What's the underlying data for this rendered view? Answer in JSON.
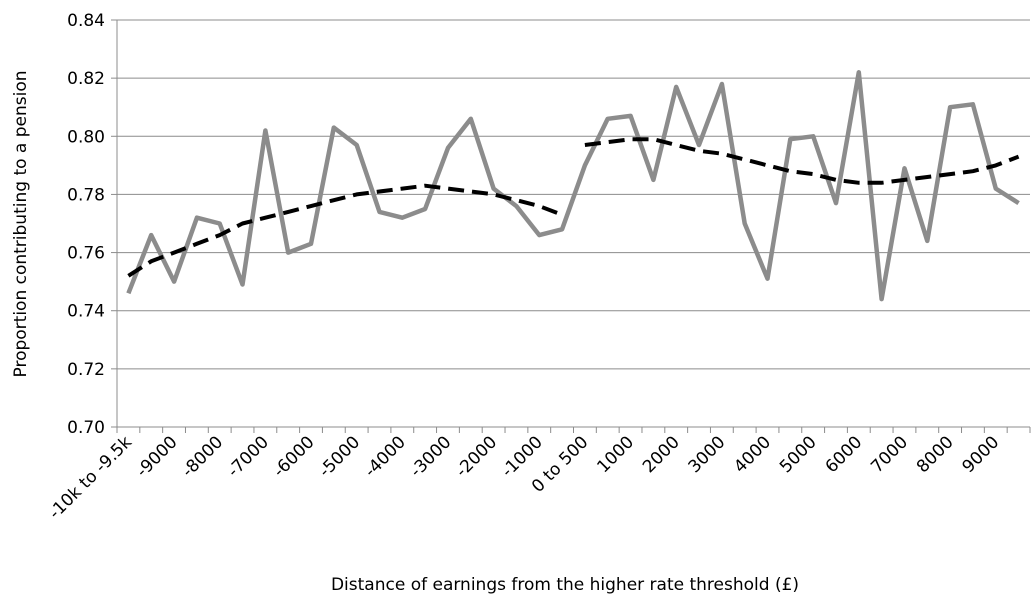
{
  "chart_data": {
    "type": "line",
    "y_label": "Proportion contributing to a pension",
    "x_label": "Distance of earnings from the higher rate threshold (£)",
    "categories": [
      "-10k to -9.5k",
      null,
      "-9000",
      null,
      "-8000",
      null,
      "-7000",
      null,
      "-6000",
      null,
      "-5000",
      null,
      "-4000",
      null,
      "-3000",
      null,
      "-2000",
      null,
      "-1000",
      null,
      "0 to 500",
      null,
      "1000",
      null,
      "2000",
      null,
      "3000",
      null,
      "4000",
      null,
      "5000",
      null,
      "6000",
      null,
      "7000",
      null,
      "8000",
      null,
      "9000",
      null
    ],
    "series": [
      {
        "color": "#8c8c8c",
        "style": "solid",
        "values": [
          0.746,
          0.766,
          0.75,
          0.772,
          0.77,
          0.749,
          0.802,
          0.76,
          0.763,
          0.803,
          0.797,
          0.774,
          0.772,
          0.775,
          0.796,
          0.806,
          0.782,
          0.776,
          0.766,
          0.768,
          0.79,
          0.806,
          0.807,
          0.785,
          0.817,
          0.797,
          0.818,
          0.77,
          0.751,
          0.799,
          0.8,
          0.777,
          0.822,
          0.744,
          0.789,
          0.764,
          0.81,
          0.811,
          0.782,
          0.777
        ]
      },
      {
        "color": "#000000",
        "style": "dashed",
        "values": [
          0.752,
          0.757,
          0.76,
          0.763,
          0.766,
          0.77,
          0.772,
          0.774,
          0.776,
          0.778,
          0.78,
          0.781,
          0.782,
          0.783,
          0.782,
          0.781,
          0.78,
          0.778,
          0.776,
          0.773,
          null,
          null,
          null,
          null,
          null,
          null,
          null,
          null,
          null,
          null,
          null,
          null,
          null,
          null,
          null,
          null,
          null,
          null,
          null,
          null
        ]
      },
      {
        "color": "#000000",
        "style": "dashed",
        "values": [
          null,
          null,
          null,
          null,
          null,
          null,
          null,
          null,
          null,
          null,
          null,
          null,
          null,
          null,
          null,
          null,
          null,
          null,
          null,
          null,
          0.797,
          0.798,
          0.799,
          0.799,
          0.797,
          0.795,
          0.794,
          0.792,
          0.79,
          0.788,
          0.787,
          0.785,
          0.784,
          0.784,
          0.785,
          0.786,
          0.787,
          0.788,
          0.79,
          0.793
        ]
      }
    ],
    "ylim": [
      0.7,
      0.84
    ],
    "yticks": [
      {
        "value": 0.7,
        "label": "0.70"
      },
      0.72,
      0.74,
      0.76,
      0.78,
      {
        "value": 0.8,
        "label": "0.80"
      },
      0.82,
      0.84
    ],
    "grid": true
  }
}
